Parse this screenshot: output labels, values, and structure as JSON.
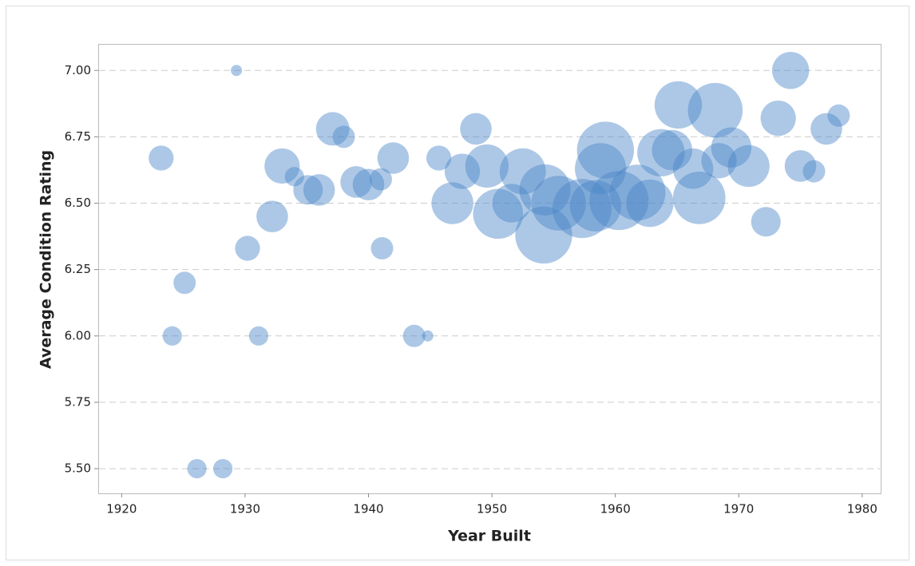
{
  "chart_data": {
    "type": "bubble",
    "x_label": "Year Built",
    "y_label": "Average Condition Rating",
    "color": "#4a86c8",
    "grid": true,
    "xlim": [
      1918.1,
      1981.5
    ],
    "ylim": [
      5.407,
      7.1
    ],
    "xticks": [
      1920,
      1930,
      1940,
      1950,
      1960,
      1970,
      1980
    ],
    "yticks": [
      {
        "value": 5.5,
        "label": "5.50"
      },
      {
        "value": 5.75,
        "label": "5.75"
      },
      {
        "value": 6,
        "label": "6.00"
      },
      {
        "value": 6.25,
        "label": "6.25"
      },
      {
        "value": 6.5,
        "label": "6.50"
      },
      {
        "value": 6.75,
        "label": "6.75"
      },
      {
        "value": 7,
        "label": "7.00"
      }
    ],
    "x": [
      1923.2,
      1929.3,
      1925.1,
      1924.1,
      1926.1,
      1928.2,
      1930.2,
      1931.1,
      1932.2,
      1933.0,
      1934.0,
      1935.1,
      1936.0,
      1937.1,
      1938.0,
      1939.0,
      1940.0,
      1941.0,
      1942.0,
      1941.1,
      1943.7,
      1944.8,
      1945.7,
      1946.8,
      1947.6,
      1948.7,
      1949.6,
      1950.5,
      1951.6,
      1952.5,
      1954.2,
      1954.3,
      1955.4,
      1957.3,
      1958.4,
      1959.2,
      1958.8,
      1960.3,
      1961.8,
      1962.8,
      1963.7,
      1965.1,
      1964.6,
      1966.8,
      1966.3,
      1968.1,
      1968.4,
      1969.4,
      1970.8,
      1972.2,
      1973.2,
      1974.2,
      1975.0,
      1976.1,
      1977.1,
      1978.1
    ],
    "values": [
      6.67,
      7.0,
      6.2,
      6.0,
      5.5,
      5.5,
      6.33,
      6.0,
      6.45,
      6.64,
      6.6,
      6.55,
      6.55,
      6.78,
      6.75,
      6.58,
      6.57,
      6.59,
      6.67,
      6.33,
      6.0,
      6.0,
      6.67,
      6.5,
      6.62,
      6.78,
      6.64,
      6.46,
      6.5,
      6.62,
      6.38,
      6.55,
      6.5,
      6.48,
      6.49,
      6.7,
      6.63,
      6.51,
      6.54,
      6.5,
      6.69,
      6.87,
      6.7,
      6.52,
      6.63,
      6.85,
      6.66,
      6.71,
      6.64,
      6.43,
      6.82,
      7.0,
      6.64,
      6.62,
      6.78,
      6.83
    ],
    "sizes": [
      5,
      1,
      4,
      3,
      3,
      3,
      5,
      3,
      8,
      10,
      3,
      7,
      8,
      9,
      4,
      8,
      8,
      4,
      8,
      4,
      4,
      1,
      5,
      14,
      10,
      8,
      15,
      20,
      12,
      17,
      26,
      21,
      24,
      28,
      21,
      26,
      21,
      28,
      25,
      18,
      18,
      18,
      13,
      22,
      13,
      24,
      10,
      13,
      14,
      7,
      10,
      11,
      8,
      4,
      8,
      4
    ]
  }
}
